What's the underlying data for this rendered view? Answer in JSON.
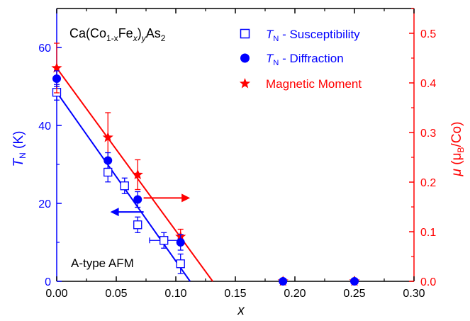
{
  "chart_data": {
    "type": "scatter",
    "compound": {
      "base": "Ca(Co",
      "sub1": "1-x",
      "mid": "Fe",
      "sub2": "x",
      "close": ")",
      "sub3": "y",
      "tail": "As",
      "sub4": "2"
    },
    "annotation": "A-type AFM",
    "x_axis": {
      "label": "x",
      "range": [
        0.0,
        0.3
      ],
      "ticks": [
        "0.00",
        "0.05",
        "0.10",
        "0.15",
        "0.20",
        "0.25",
        "0.30"
      ]
    },
    "y_left": {
      "label_main": "T",
      "label_sub": "N",
      "label_unit": " (K)",
      "range": [
        0,
        70
      ],
      "ticks": [
        "0",
        "20",
        "40",
        "60"
      ],
      "color": "#0000ff"
    },
    "y_right": {
      "label_main": "μ",
      "label_unit_open": " (μ",
      "label_sub": "B",
      "label_unit_close": "/Co)",
      "range": [
        0.0,
        0.55
      ],
      "ticks": [
        "0.0",
        "0.1",
        "0.2",
        "0.3",
        "0.4",
        "0.5"
      ],
      "color": "#ff0000"
    },
    "legend": [
      {
        "marker": "open-square",
        "color": "#0000ff",
        "main": "T",
        "sub": "N",
        "rest": " - Susceptibility"
      },
      {
        "marker": "filled-circle",
        "color": "#0000ff",
        "main": "T",
        "sub": "N",
        "rest": " - Diffraction"
      },
      {
        "marker": "star",
        "color": "#ff0000",
        "main": "Magnetic Moment",
        "sub": "",
        "rest": ""
      }
    ],
    "series": [
      {
        "name": "T_N - Susceptibility",
        "axis": "left",
        "color": "#0000ff",
        "marker": "open-square",
        "points": [
          {
            "x": 0.0,
            "y": 48.5,
            "err": 2
          },
          {
            "x": 0.043,
            "y": 28,
            "err": 2.5
          },
          {
            "x": 0.057,
            "y": 24.5,
            "err": 2
          },
          {
            "x": 0.068,
            "y": 14.5,
            "err": 2
          },
          {
            "x": 0.09,
            "y": 10.5,
            "err": 2,
            "xerr": 0.012
          },
          {
            "x": 0.104,
            "y": 4.5,
            "err": 2.5
          }
        ]
      },
      {
        "name": "T_N - Diffraction",
        "axis": "left",
        "color": "#0000ff",
        "marker": "filled-circle",
        "points": [
          {
            "x": 0.0,
            "y": 52,
            "err": 2
          },
          {
            "x": 0.043,
            "y": 31,
            "err": 2
          },
          {
            "x": 0.068,
            "y": 21,
            "err": 2
          },
          {
            "x": 0.104,
            "y": 10,
            "err": 2
          },
          {
            "x": 0.19,
            "y": 0,
            "err": 0
          },
          {
            "x": 0.25,
            "y": 0,
            "err": 0
          }
        ]
      },
      {
        "name": "Magnetic Moment",
        "axis": "right",
        "color": "#ff0000",
        "marker": "star",
        "points": [
          {
            "x": 0.0,
            "y": 0.43,
            "err": 0.05
          },
          {
            "x": 0.043,
            "y": 0.29,
            "err": 0.05
          },
          {
            "x": 0.068,
            "y": 0.215,
            "err": 0.03
          },
          {
            "x": 0.104,
            "y": 0.09,
            "err": 0.015
          },
          {
            "x": 0.19,
            "y": 0.0,
            "err": 0
          },
          {
            "x": 0.25,
            "y": 0.0,
            "err": 0
          }
        ]
      }
    ],
    "fit_lines": [
      {
        "axis": "left",
        "color": "#0000ff",
        "x": [
          0.0,
          0.112
        ],
        "y": [
          48.5,
          0
        ]
      },
      {
        "axis": "right",
        "color": "#ff0000",
        "x": [
          0.0,
          0.131
        ],
        "y": [
          0.43,
          0.0
        ]
      }
    ],
    "axis_arrows": [
      {
        "axis": "left",
        "color": "#0000ff",
        "from_x": 0.073,
        "to_x": 0.045,
        "y": 17.8
      },
      {
        "axis": "right",
        "color": "#ff0000",
        "from_x": 0.073,
        "to_x": 0.112,
        "y": 0.168
      }
    ]
  }
}
